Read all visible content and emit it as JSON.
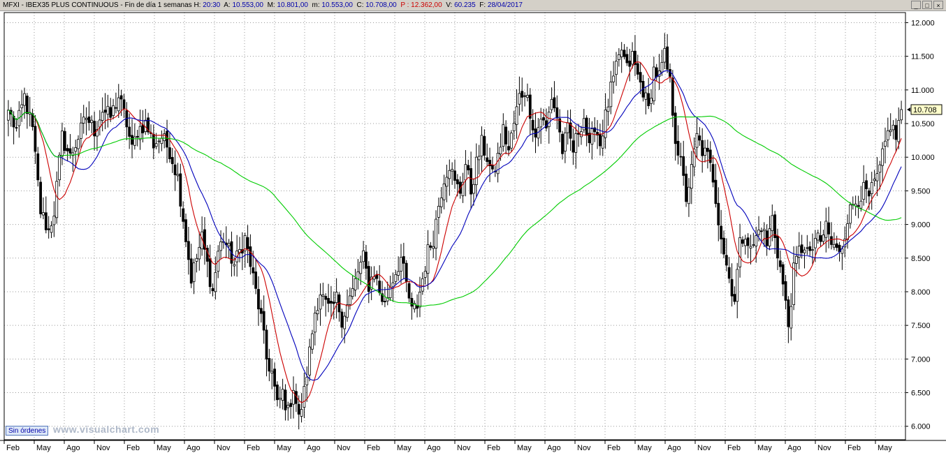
{
  "header": {
    "symbol": "MFXI",
    "instrument": "IBEX35 PLUS CONTINUOUS",
    "period": "Fin de día 1 semanas",
    "time_label": "H:",
    "time": "20:30",
    "open_label": "A:",
    "open": "10.553,00",
    "high_label": "M:",
    "high": "10.801,00",
    "low_label": "m:",
    "low": "10.553,00",
    "close_label": "C:",
    "close": "10.708,00",
    "p_label": "P :",
    "p": "12.362,00",
    "volume_label": "V:",
    "volume": "60.235",
    "date_label": "F:",
    "date": "28/04/2017"
  },
  "window_buttons": [
    "_",
    "□",
    "×"
  ],
  "footer": {
    "orders_button": "Sin órdenes",
    "watermark": "www.visualchart.com"
  },
  "chart_data": {
    "type": "candlestick",
    "title": "",
    "price_axis": {
      "min": 5800,
      "max": 12150,
      "position": "right",
      "ticks": [
        "12.000",
        "11.500",
        "11.000",
        "10.500",
        "10.000",
        "9.500",
        "9.000",
        "8.500",
        "8.000",
        "7.500",
        "7.000",
        "6.500",
        "6.000"
      ]
    },
    "last_price_label": "10.708",
    "time_axis": {
      "ticks": [
        "Feb",
        "May",
        "Ago",
        "Nov",
        "Feb",
        "May",
        "Ago",
        "Nov",
        "Feb",
        "May",
        "Ago",
        "Nov",
        "Feb",
        "May",
        "Ago",
        "Nov",
        "Feb",
        "May",
        "Ago",
        "Nov",
        "Feb",
        "May",
        "Ago",
        "Nov",
        "Feb",
        "May",
        "Ago",
        "Nov",
        "Feb",
        "May"
      ]
    },
    "grid": true,
    "price_anchors": [
      [
        0,
        10700
      ],
      [
        3,
        10400
      ],
      [
        6,
        10900
      ],
      [
        9,
        10400
      ],
      [
        12,
        9200
      ],
      [
        15,
        8900
      ],
      [
        17,
        9200
      ],
      [
        20,
        10300
      ],
      [
        23,
        10000
      ],
      [
        26,
        10300
      ],
      [
        29,
        10600
      ],
      [
        32,
        10400
      ],
      [
        35,
        10700
      ],
      [
        38,
        10600
      ],
      [
        41,
        10900
      ],
      [
        44,
        10500
      ],
      [
        46,
        10100
      ],
      [
        48,
        10400
      ],
      [
        51,
        10500
      ],
      [
        54,
        10200
      ],
      [
        57,
        10300
      ],
      [
        60,
        10100
      ],
      [
        63,
        9700
      ],
      [
        66,
        8800
      ],
      [
        68,
        8200
      ],
      [
        70,
        8500
      ],
      [
        72,
        8800
      ],
      [
        74,
        8400
      ],
      [
        76,
        8000
      ],
      [
        78,
        8600
      ],
      [
        80,
        8800
      ],
      [
        82,
        8600
      ],
      [
        84,
        8400
      ],
      [
        86,
        8600
      ],
      [
        88,
        8800
      ],
      [
        90,
        8400
      ],
      [
        92,
        8000
      ],
      [
        94,
        7600
      ],
      [
        96,
        7000
      ],
      [
        98,
        6800
      ],
      [
        100,
        6300
      ],
      [
        102,
        6500
      ],
      [
        104,
        6200
      ],
      [
        106,
        6600
      ],
      [
        108,
        6100
      ],
      [
        110,
        6500
      ],
      [
        112,
        7100
      ],
      [
        114,
        7700
      ],
      [
        116,
        8000
      ],
      [
        118,
        7800
      ],
      [
        120,
        7700
      ],
      [
        122,
        7900
      ],
      [
        124,
        7600
      ],
      [
        126,
        7800
      ],
      [
        128,
        8000
      ],
      [
        130,
        8300
      ],
      [
        132,
        8500
      ],
      [
        134,
        8100
      ],
      [
        136,
        8300
      ],
      [
        138,
        8000
      ],
      [
        140,
        7800
      ],
      [
        142,
        8100
      ],
      [
        144,
        8300
      ],
      [
        146,
        8500
      ],
      [
        148,
        8100
      ],
      [
        150,
        7700
      ],
      [
        152,
        7800
      ],
      [
        154,
        8200
      ],
      [
        156,
        8600
      ],
      [
        158,
        8800
      ],
      [
        160,
        9300
      ],
      [
        162,
        9700
      ],
      [
        164,
        9900
      ],
      [
        166,
        9600
      ],
      [
        168,
        9500
      ],
      [
        170,
        9900
      ],
      [
        172,
        9500
      ],
      [
        174,
        9900
      ],
      [
        176,
        10200
      ],
      [
        178,
        10000
      ],
      [
        180,
        9700
      ],
      [
        182,
        10000
      ],
      [
        184,
        10400
      ],
      [
        186,
        10100
      ],
      [
        188,
        10500
      ],
      [
        190,
        10900
      ],
      [
        192,
        11000
      ],
      [
        194,
        10700
      ],
      [
        196,
        10300
      ],
      [
        198,
        10600
      ],
      [
        200,
        10400
      ],
      [
        202,
        10900
      ],
      [
        204,
        10600
      ],
      [
        206,
        10100
      ],
      [
        208,
        10400
      ],
      [
        210,
        10100
      ],
      [
        212,
        10400
      ],
      [
        214,
        10600
      ],
      [
        216,
        10100
      ],
      [
        218,
        10500
      ],
      [
        220,
        10200
      ],
      [
        222,
        10600
      ],
      [
        224,
        11000
      ],
      [
        226,
        11300
      ],
      [
        228,
        11600
      ],
      [
        230,
        11300
      ],
      [
        232,
        11500
      ],
      [
        234,
        11200
      ],
      [
        236,
        11000
      ],
      [
        238,
        10700
      ],
      [
        240,
        11300
      ],
      [
        242,
        11200
      ],
      [
        244,
        11500
      ],
      [
        246,
        11100
      ],
      [
        248,
        10300
      ],
      [
        250,
        9900
      ],
      [
        252,
        9400
      ],
      [
        254,
        9800
      ],
      [
        256,
        10300
      ],
      [
        258,
        10100
      ],
      [
        260,
        10000
      ],
      [
        262,
        9700
      ],
      [
        264,
        9100
      ],
      [
        266,
        8600
      ],
      [
        268,
        8200
      ],
      [
        270,
        7900
      ],
      [
        272,
        8700
      ],
      [
        274,
        8900
      ],
      [
        276,
        8600
      ],
      [
        278,
        8800
      ],
      [
        280,
        9000
      ],
      [
        282,
        8700
      ],
      [
        284,
        9100
      ],
      [
        286,
        8600
      ],
      [
        288,
        8100
      ],
      [
        290,
        7500
      ],
      [
        292,
        8300
      ],
      [
        294,
        8600
      ],
      [
        296,
        8700
      ],
      [
        298,
        8500
      ],
      [
        300,
        8800
      ],
      [
        302,
        8700
      ],
      [
        304,
        9000
      ],
      [
        306,
        8700
      ],
      [
        308,
        8600
      ],
      [
        310,
        8700
      ],
      [
        312,
        9100
      ],
      [
        314,
        9300
      ],
      [
        316,
        9400
      ],
      [
        318,
        9500
      ],
      [
        320,
        9400
      ],
      [
        322,
        9600
      ],
      [
        324,
        9800
      ],
      [
        326,
        10200
      ],
      [
        328,
        10500
      ],
      [
        330,
        10300
      ],
      [
        332,
        10708
      ]
    ],
    "series": [
      {
        "name": "",
        "type": "moving-average",
        "color": "#cc0000",
        "period": 10
      },
      {
        "name": "",
        "type": "moving-average",
        "color": "#0000bb",
        "period": 20
      },
      {
        "name": "",
        "type": "moving-average",
        "color": "#00cc00",
        "period": 80
      }
    ]
  }
}
